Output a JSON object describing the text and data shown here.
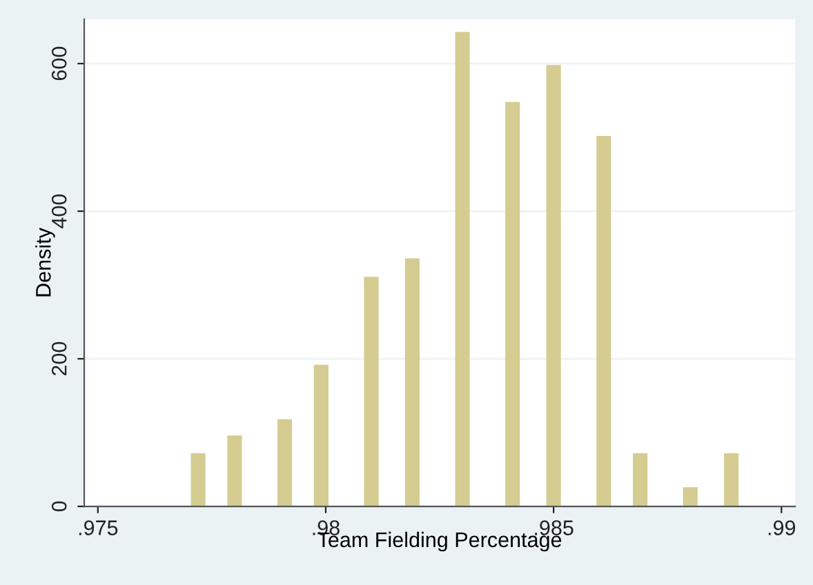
{
  "chart_data": {
    "type": "bar",
    "xlabel": "Team Fielding Percentage",
    "ylabel": "Density",
    "x": [
      0.9772,
      0.978,
      0.9791,
      0.9799,
      0.981,
      0.9819,
      0.983,
      0.9841,
      0.985,
      0.9861,
      0.9869,
      0.988,
      0.9889
    ],
    "values": [
      72,
      96,
      118,
      192,
      311,
      336,
      643,
      548,
      598,
      502,
      72,
      26,
      72
    ],
    "color": "#d4cc91",
    "xlim": [
      0.9747,
      0.9903
    ],
    "xticks": [
      {
        "value": 0.975,
        "label": ".975"
      },
      {
        "value": 0.98,
        "label": ".98"
      },
      {
        "value": 0.985,
        "label": ".985"
      },
      {
        "value": 0.99,
        "label": ".99"
      }
    ],
    "ylim": [
      0,
      660
    ],
    "yticks": [
      0,
      200,
      400,
      600
    ],
    "grid": "y"
  }
}
